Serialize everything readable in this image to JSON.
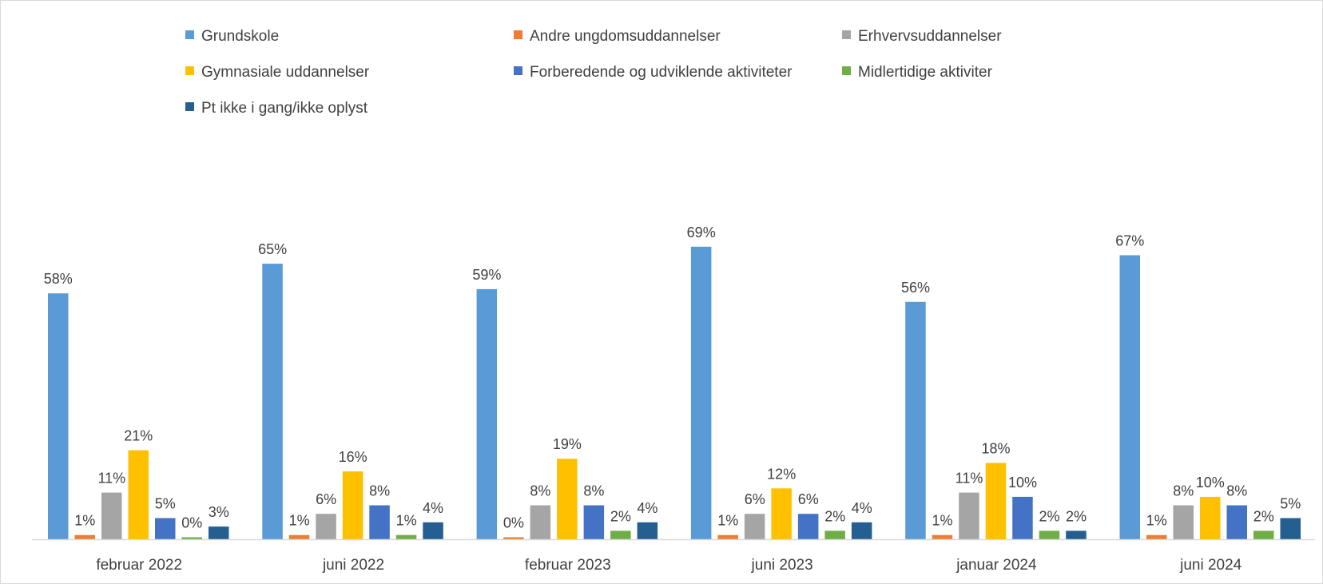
{
  "chart_data": {
    "type": "bar",
    "categories": [
      "februar 2022",
      "juni 2022",
      "februar 2023",
      "juni 2023",
      "januar 2024",
      "juni 2024"
    ],
    "series": [
      {
        "name": "Grundskole",
        "color": "#5B9BD5",
        "values": [
          58,
          65,
          59,
          69,
          56,
          67
        ]
      },
      {
        "name": "Andre ungdomsuddannelser",
        "color": "#ED7D31",
        "values": [
          1,
          1,
          0,
          1,
          1,
          1
        ]
      },
      {
        "name": "Erhvervsuddannelser",
        "color": "#A5A5A5",
        "values": [
          11,
          6,
          8,
          6,
          11,
          8
        ]
      },
      {
        "name": "Gymnasiale uddannelser",
        "color": "#FFC000",
        "values": [
          21,
          16,
          19,
          12,
          18,
          10
        ]
      },
      {
        "name": "Forberedende og udviklende aktiviteter",
        "color": "#4472C4",
        "values": [
          5,
          8,
          8,
          6,
          10,
          8
        ]
      },
      {
        "name": "Midlertidige aktiviter",
        "color": "#70AD47",
        "values": [
          0,
          1,
          2,
          2,
          2,
          2
        ]
      },
      {
        "name": "Pt ikke i gang/ikke oplyst",
        "color": "#255E91",
        "values": [
          3,
          4,
          4,
          4,
          2,
          5
        ]
      }
    ],
    "value_suffix": "%",
    "ylim": [
      0,
      75
    ],
    "grid": false,
    "legend_position": "top"
  }
}
